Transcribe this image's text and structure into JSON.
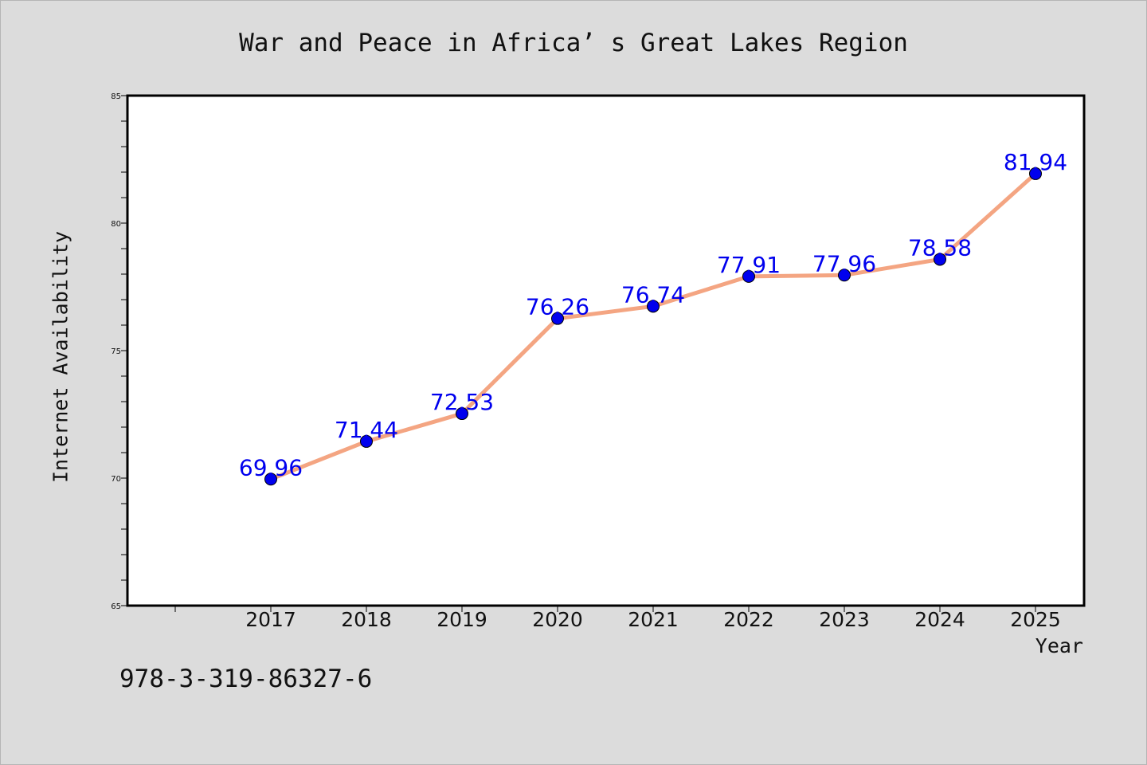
{
  "chart_data": {
    "type": "line",
    "title": "War and Peace in Africa’ s Great Lakes Region",
    "xlabel": "Year",
    "ylabel": "Internet Availability",
    "categories": [
      "2017",
      "2018",
      "2019",
      "2020",
      "2021",
      "2022",
      "2023",
      "2024",
      "2025"
    ],
    "series": [
      {
        "values": [
          69.96,
          71.44,
          72.53,
          76.26,
          76.74,
          77.91,
          77.96,
          78.58,
          81.94
        ],
        "data_labels": [
          "69.96",
          "71.44",
          "72.53",
          "76.26",
          "76.74",
          "77.91",
          "77.96",
          "78.58",
          "81.94"
        ],
        "line_color": "#f4a582",
        "marker_color": "#0000ee",
        "label_color": "#0000ee"
      }
    ],
    "ylim": [
      65,
      85
    ],
    "yticks": [
      "65",
      "70",
      "75",
      "80",
      "85"
    ],
    "grid": false,
    "legend": "none"
  },
  "footer": {
    "isbn": "978-3-319-86327-6"
  }
}
